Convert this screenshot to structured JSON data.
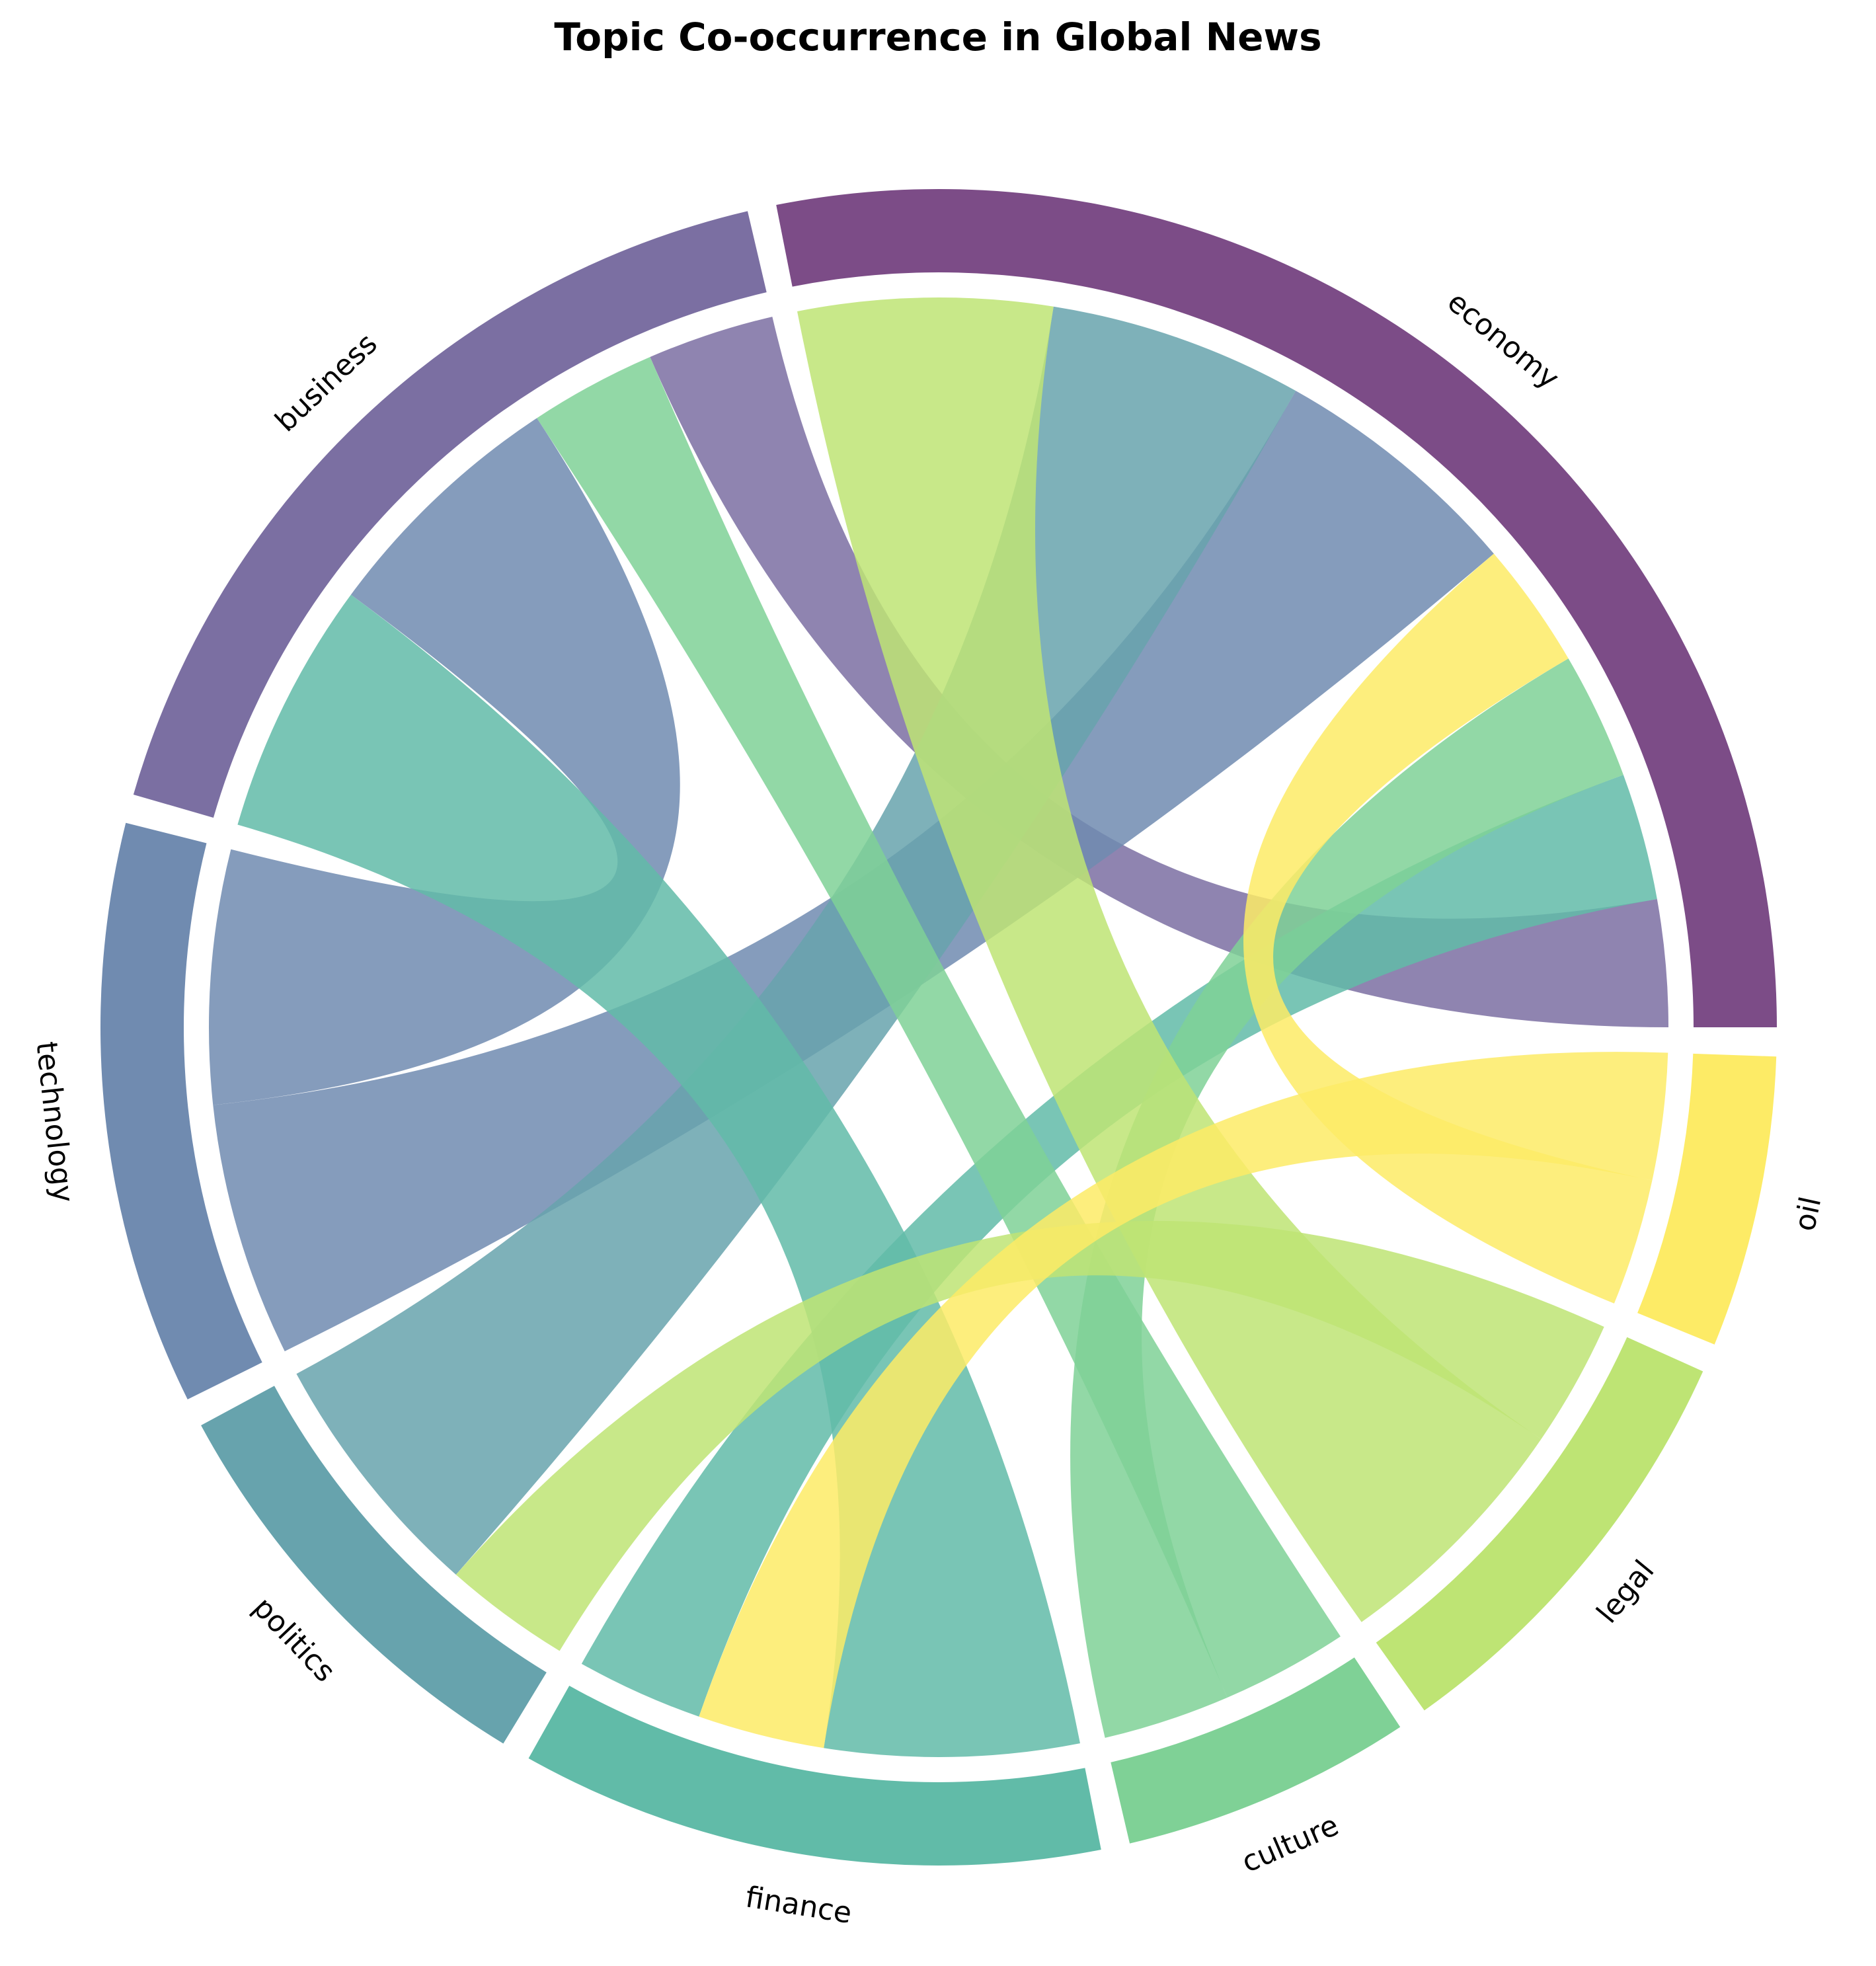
{
  "chart_data": {
    "type": "chord",
    "title": "Topic Co-occurrence in Global News",
    "nodes": [
      {
        "name": "economy",
        "total": 10,
        "color": "#7c4c87"
      },
      {
        "name": "business",
        "total": 6,
        "color": "#7b6fa2"
      },
      {
        "name": "technology",
        "total": 4,
        "color": "#708bb0"
      },
      {
        "name": "politics",
        "total": 3,
        "color": "#67a3ad"
      },
      {
        "name": "finance",
        "total": 4,
        "color": "#61bba8"
      },
      {
        "name": "culture",
        "total": 2,
        "color": "#7fd196"
      },
      {
        "name": "legal",
        "total": 3,
        "color": "#bee474"
      },
      {
        "name": "oil",
        "total": 2,
        "color": "#fdeb66"
      }
    ],
    "links": [
      {
        "source": "economy",
        "target": "business",
        "value": 1,
        "color_by": "business"
      },
      {
        "source": "economy",
        "target": "finance",
        "value": 1,
        "color_by": "finance"
      },
      {
        "source": "economy",
        "target": "culture",
        "value": 1,
        "color_by": "culture"
      },
      {
        "source": "economy",
        "target": "oil",
        "value": 1,
        "color_by": "oil"
      },
      {
        "source": "economy",
        "target": "technology",
        "value": 2,
        "color_by": "technology"
      },
      {
        "source": "economy",
        "target": "politics",
        "value": 2,
        "color_by": "politics"
      },
      {
        "source": "economy",
        "target": "legal",
        "value": 2,
        "color_by": "legal"
      },
      {
        "source": "business",
        "target": "culture",
        "value": 1,
        "color_by": "culture"
      },
      {
        "source": "business",
        "target": "technology",
        "value": 2,
        "color_by": "technology"
      },
      {
        "source": "business",
        "target": "finance",
        "value": 2,
        "color_by": "finance"
      },
      {
        "source": "politics",
        "target": "legal",
        "value": 1,
        "color_by": "legal"
      },
      {
        "source": "finance",
        "target": "oil",
        "value": 1,
        "color_by": "oil"
      }
    ],
    "segment_order": {
      "economy": [
        "business",
        "finance",
        "culture",
        "oil",
        "technology",
        "politics",
        "legal"
      ],
      "business": [
        "economy",
        "culture",
        "technology",
        "finance"
      ],
      "technology": [
        "business",
        "economy"
      ],
      "politics": [
        "economy",
        "legal"
      ],
      "finance": [
        "economy",
        "oil",
        "business"
      ],
      "culture": [
        "economy",
        "business"
      ],
      "legal": [
        "economy",
        "politics"
      ],
      "oil": [
        "economy",
        "finance"
      ]
    },
    "layout": {
      "gap_degrees": 2,
      "start_angle": 0,
      "direction": "counterclockwise"
    }
  }
}
